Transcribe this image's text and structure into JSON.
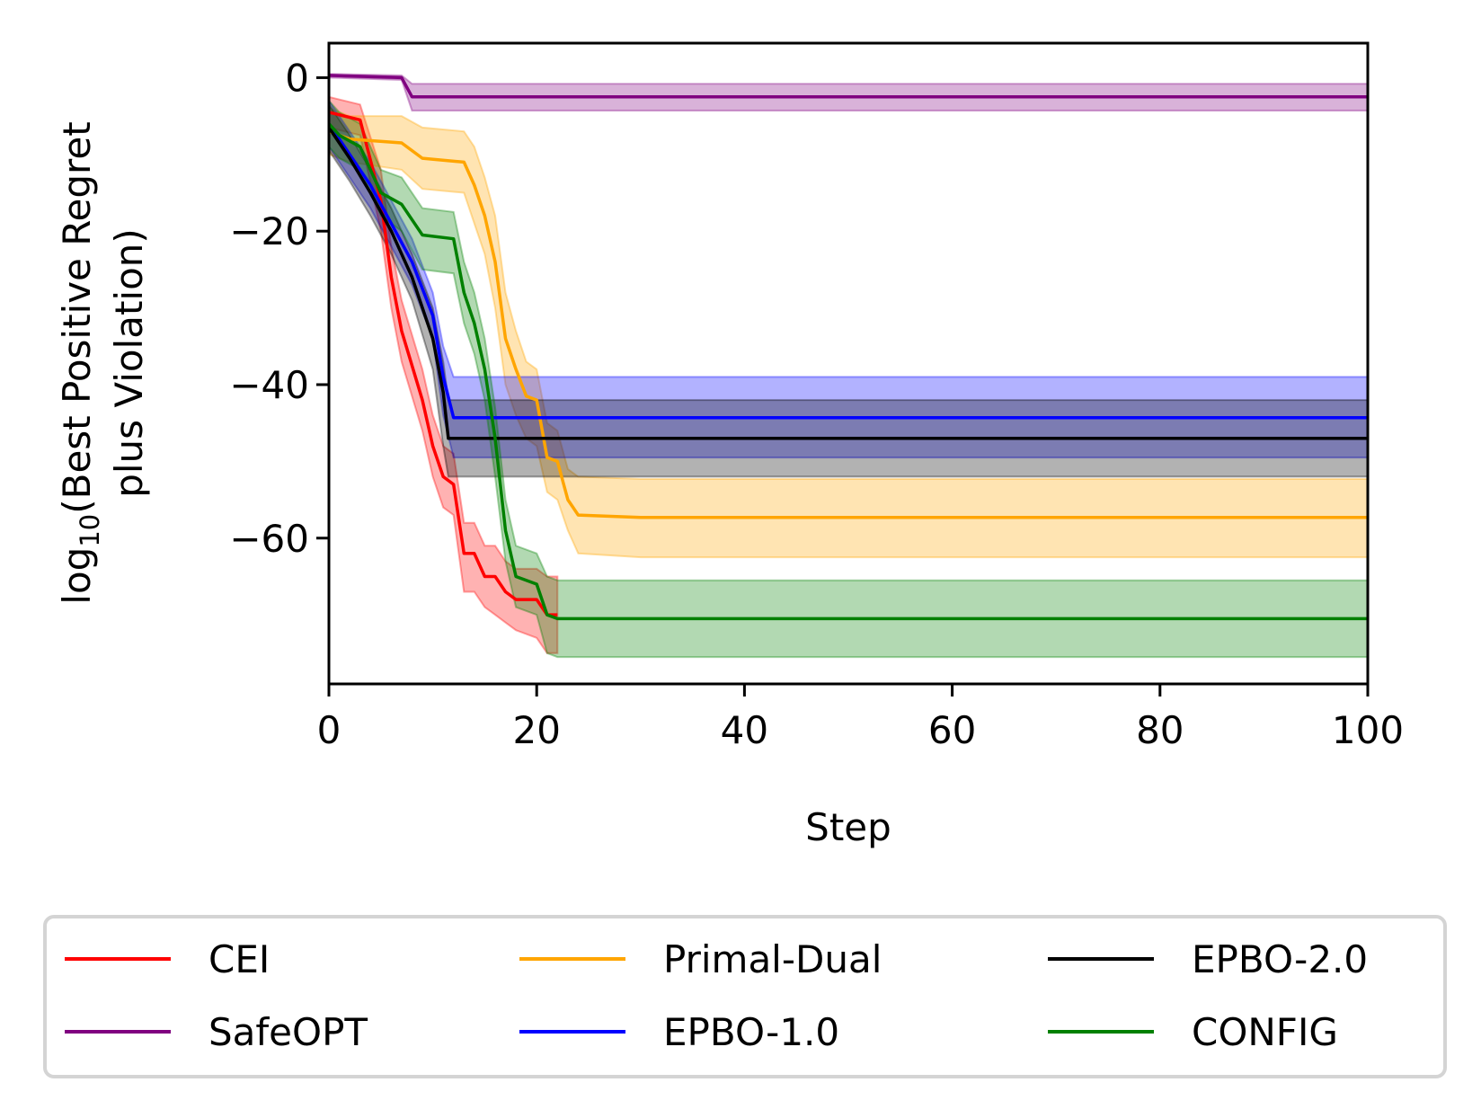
{
  "chart_data": {
    "type": "line",
    "xlabel": "Step",
    "ylabel_main": "(Best Positive Regret",
    "ylabel_log": "log",
    "ylabel_sub": "10",
    "ylabel_line2": "plus Violation)",
    "xlim": [
      0,
      100
    ],
    "ylim": [
      -79,
      4.5
    ],
    "x_ticks": [
      0,
      20,
      40,
      60,
      80,
      100
    ],
    "x_tick_labels": [
      "0",
      "20",
      "40",
      "60",
      "80",
      "100"
    ],
    "y_ticks": [
      0,
      -20,
      -40,
      -60
    ],
    "y_tick_labels": [
      "0",
      "−20",
      "−40",
      "−60"
    ],
    "grid": false,
    "legend_placement": "below",
    "series": [
      {
        "name": "CEI",
        "color": "#ff0000",
        "fill_alpha": 0.3,
        "points": [
          [
            0,
            -4.5
          ],
          [
            3,
            -5.5
          ],
          [
            5,
            -16
          ],
          [
            6,
            -26
          ],
          [
            7,
            -33
          ],
          [
            9,
            -42
          ],
          [
            10,
            -48
          ],
          [
            11,
            -52
          ],
          [
            12,
            -53
          ],
          [
            13,
            -62
          ],
          [
            14,
            -62
          ],
          [
            15,
            -65
          ],
          [
            16,
            -65
          ],
          [
            17,
            -67
          ],
          [
            18,
            -68
          ],
          [
            20,
            -68
          ],
          [
            21,
            -70
          ],
          [
            22,
            -70
          ]
        ],
        "band": [
          [
            0,
            -2.5,
            -6.5
          ],
          [
            3,
            -3.5,
            -7.5
          ],
          [
            5,
            -12,
            -20
          ],
          [
            6,
            -22,
            -30
          ],
          [
            7,
            -29,
            -37
          ],
          [
            9,
            -38,
            -46
          ],
          [
            10,
            -44,
            -52
          ],
          [
            11,
            -48,
            -56
          ],
          [
            12,
            -49,
            -57
          ],
          [
            13,
            -58,
            -67
          ],
          [
            14,
            -58,
            -67
          ],
          [
            15,
            -61,
            -69
          ],
          [
            16,
            -61,
            -70
          ],
          [
            17,
            -63,
            -71
          ],
          [
            18,
            -64,
            -72
          ],
          [
            20,
            -64,
            -73
          ],
          [
            21,
            -65,
            -75
          ],
          [
            22,
            -65,
            -75
          ]
        ]
      },
      {
        "name": "SafeOPT",
        "color": "#800080",
        "fill_alpha": 0.3,
        "points": [
          [
            0,
            0.3
          ],
          [
            7,
            0
          ],
          [
            8,
            -2.5
          ],
          [
            100,
            -2.5
          ]
        ],
        "band": [
          [
            0,
            0.5,
            0
          ],
          [
            7,
            0.3,
            -0.3
          ],
          [
            8,
            -0.8,
            -4.3
          ],
          [
            100,
            -0.8,
            -4.3
          ]
        ]
      },
      {
        "name": "Primal-Dual",
        "color": "#ffa500",
        "fill_alpha": 0.3,
        "points": [
          [
            0,
            -7
          ],
          [
            2,
            -8
          ],
          [
            7,
            -8.5
          ],
          [
            9,
            -10.5
          ],
          [
            13,
            -11
          ],
          [
            14,
            -14
          ],
          [
            15,
            -18
          ],
          [
            16,
            -24
          ],
          [
            17,
            -34
          ],
          [
            18,
            -38
          ],
          [
            19,
            -41.5
          ],
          [
            20,
            -42
          ],
          [
            21,
            -49.5
          ],
          [
            22,
            -50
          ],
          [
            23,
            -55
          ],
          [
            24,
            -57
          ],
          [
            30,
            -57.3
          ],
          [
            100,
            -57.3
          ]
        ],
        "band": [
          [
            0,
            -4,
            -10
          ],
          [
            2,
            -5,
            -11
          ],
          [
            7,
            -5,
            -12
          ],
          [
            9,
            -6.5,
            -14.5
          ],
          [
            13,
            -7,
            -15
          ],
          [
            14,
            -9,
            -19
          ],
          [
            15,
            -13,
            -23
          ],
          [
            16,
            -18,
            -30
          ],
          [
            17,
            -28,
            -40
          ],
          [
            18,
            -33,
            -44
          ],
          [
            19,
            -37,
            -47
          ],
          [
            20,
            -38,
            -48
          ],
          [
            21,
            -45,
            -54
          ],
          [
            22,
            -46,
            -55
          ],
          [
            23,
            -51,
            -59
          ],
          [
            24,
            -52,
            -62
          ],
          [
            30,
            -52.3,
            -62.5
          ],
          [
            100,
            -52.3,
            -62.5
          ]
        ]
      },
      {
        "name": "EPBO-1.0",
        "color": "#0000ff",
        "fill_alpha": 0.3,
        "points": [
          [
            0,
            -6
          ],
          [
            2,
            -10
          ],
          [
            4,
            -14
          ],
          [
            6,
            -19
          ],
          [
            8,
            -24
          ],
          [
            10,
            -31
          ],
          [
            11,
            -39
          ],
          [
            12,
            -44.3
          ],
          [
            100,
            -44.3
          ]
        ],
        "band": [
          [
            0,
            -3,
            -9
          ],
          [
            2,
            -7,
            -13
          ],
          [
            4,
            -11,
            -17
          ],
          [
            6,
            -16,
            -22
          ],
          [
            8,
            -21,
            -27
          ],
          [
            10,
            -28,
            -34
          ],
          [
            11,
            -35,
            -44
          ],
          [
            12,
            -39,
            -49.5
          ],
          [
            100,
            -39,
            -49.5
          ]
        ]
      },
      {
        "name": "EPBO-2.0",
        "color": "#000000",
        "fill_alpha": 0.3,
        "points": [
          [
            0,
            -6.5
          ],
          [
            2,
            -10.5
          ],
          [
            4,
            -15
          ],
          [
            6,
            -20
          ],
          [
            8,
            -26
          ],
          [
            10,
            -34
          ],
          [
            11,
            -41
          ],
          [
            11.5,
            -47
          ],
          [
            20,
            -47
          ],
          [
            100,
            -47
          ]
        ],
        "band": [
          [
            0,
            -3.5,
            -9.5
          ],
          [
            2,
            -7.5,
            -13.5
          ],
          [
            4,
            -12,
            -18
          ],
          [
            6,
            -17,
            -23
          ],
          [
            8,
            -23,
            -29
          ],
          [
            10,
            -30,
            -38
          ],
          [
            11,
            -37,
            -48
          ],
          [
            11.5,
            -42,
            -52
          ],
          [
            20,
            -42,
            -52
          ],
          [
            100,
            -42,
            -52
          ]
        ]
      },
      {
        "name": "CONFIG",
        "color": "#008000",
        "fill_alpha": 0.3,
        "points": [
          [
            0,
            -6
          ],
          [
            1,
            -7.5
          ],
          [
            3,
            -9
          ],
          [
            5,
            -15
          ],
          [
            7,
            -16.5
          ],
          [
            9,
            -20.5
          ],
          [
            12,
            -21
          ],
          [
            13,
            -28
          ],
          [
            14,
            -32
          ],
          [
            15,
            -38
          ],
          [
            16,
            -47
          ],
          [
            17,
            -59
          ],
          [
            18,
            -65
          ],
          [
            20,
            -66
          ],
          [
            21,
            -70
          ],
          [
            22,
            -70.5
          ],
          [
            100,
            -70.5
          ]
        ],
        "band": [
          [
            0,
            -3,
            -9
          ],
          [
            1,
            -4.5,
            -10.5
          ],
          [
            3,
            -6,
            -12
          ],
          [
            5,
            -12,
            -18
          ],
          [
            7,
            -13,
            -20
          ],
          [
            9,
            -17,
            -25
          ],
          [
            12,
            -17.5,
            -25.5
          ],
          [
            13,
            -24,
            -32
          ],
          [
            14,
            -28,
            -36
          ],
          [
            15,
            -34,
            -42
          ],
          [
            16,
            -43,
            -52
          ],
          [
            17,
            -55,
            -63
          ],
          [
            18,
            -61,
            -69
          ],
          [
            20,
            -62,
            -70
          ],
          [
            21,
            -65,
            -75
          ],
          [
            22,
            -65.5,
            -75.5
          ],
          [
            100,
            -65.5,
            -75.5
          ]
        ]
      }
    ]
  }
}
